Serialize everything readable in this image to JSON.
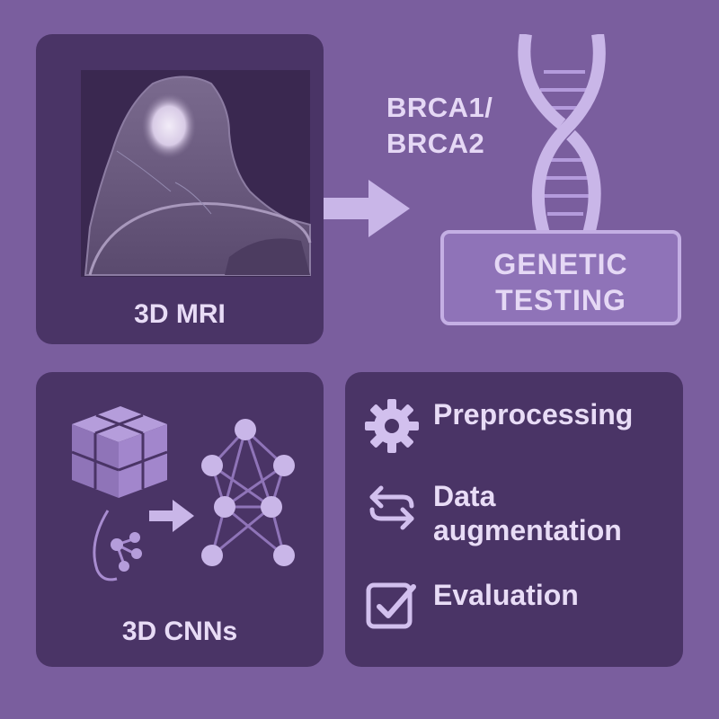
{
  "mri": {
    "label": "3D MRI"
  },
  "genetics": {
    "gene_label_line1": "BRCA1/",
    "gene_label_line2": "BRCA2",
    "testing_line1": "GENETIC",
    "testing_line2": "TESTING"
  },
  "cnn": {
    "label": "3D CNNs"
  },
  "steps": [
    {
      "label": "Preprocessing",
      "icon": "gear-icon"
    },
    {
      "label": "Data augmentation",
      "icon": "swap-arrows-icon"
    },
    {
      "label": "Evaluation",
      "icon": "checkbox-icon"
    }
  ],
  "colors": {
    "background": "#7a5e9e",
    "panel": "#4a3466",
    "accent": "#c4afe4",
    "text": "#e8dcf6"
  }
}
